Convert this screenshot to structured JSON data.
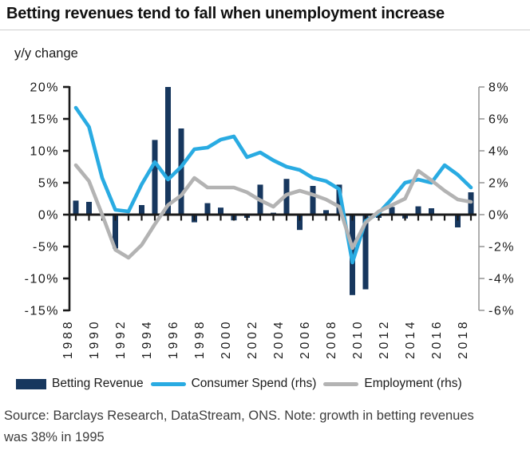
{
  "page": {
    "title": "Betting revenues tend to fall when unemployment increase",
    "subtitle": "y/y change",
    "source_note_line1": "Source: Barclays Research, DataStream, ONS. Note: growth in betting revenues",
    "source_note_line2": "was 38% in 1995"
  },
  "colors": {
    "betting_revenue": "#17375E",
    "consumer_spend": "#29ABE2",
    "employment": "#B3B3B3",
    "axis_black": "#1a1a1a",
    "right_axis_gray": "#999999"
  },
  "legend": [
    {
      "label": "Betting Revenue",
      "swatch": "bar",
      "color_key": "betting_revenue"
    },
    {
      "label": "Consumer Spend (rhs)",
      "swatch": "line",
      "color_key": "consumer_spend"
    },
    {
      "label": "Employment (rhs)",
      "swatch": "line",
      "color_key": "employment"
    }
  ],
  "chart_data": {
    "type": "combo",
    "x": [
      1988,
      1989,
      1990,
      1991,
      1992,
      1993,
      1994,
      1995,
      1996,
      1997,
      1998,
      1999,
      2000,
      2001,
      2002,
      2003,
      2004,
      2005,
      2006,
      2007,
      2008,
      2009,
      2010,
      2011,
      2012,
      2013,
      2014,
      2015,
      2016,
      2017,
      2018
    ],
    "x_tick_labels": [
      "1988",
      "1990",
      "1992",
      "1994",
      "1996",
      "1998",
      "2000",
      "2002",
      "2004",
      "2006",
      "2008",
      "2010",
      "2012",
      "2014",
      "2016",
      "2018"
    ],
    "left_axis": {
      "applies_to": "Betting Revenue",
      "unit": "%",
      "range": [
        -15,
        20
      ],
      "tick_values": [
        20,
        15,
        10,
        5,
        0,
        -5,
        -10,
        -15
      ],
      "tick_labels": [
        "20%",
        "15%",
        "10%",
        "5%",
        "0%",
        "-5%",
        "-10%",
        "-15%"
      ]
    },
    "right_axis": {
      "applies_to": "Consumer Spend, Employment",
      "unit": "%",
      "range": [
        -6,
        8
      ],
      "tick_values": [
        8,
        6,
        4,
        2,
        0,
        -2,
        -4,
        -6
      ],
      "tick_labels": [
        "8%",
        "6%",
        "4%",
        "2%",
        "0%",
        "-2%",
        "-4%",
        "-6%"
      ]
    },
    "series": [
      {
        "name": "Betting Revenue",
        "type": "bar",
        "axis": "left",
        "note": "1995 value is 38% but the bar is clipped at the 20% axis maximum",
        "values": [
          2.2,
          2.0,
          0,
          -5.3,
          0,
          1.5,
          11.7,
          38,
          13.5,
          -1.2,
          1.8,
          1.1,
          -0.9,
          -0.5,
          4.7,
          0.3,
          5.6,
          -2.4,
          4.5,
          0.7,
          4.7,
          -12.6,
          -11.7,
          -0.5,
          1.2,
          -0.6,
          1.3,
          1.0,
          0,
          -2.0,
          3.5
        ]
      },
      {
        "name": "Consumer Spend (rhs)",
        "type": "line",
        "axis": "right",
        "values": [
          6.7,
          5.5,
          2.3,
          0.3,
          0.2,
          1.9,
          3.3,
          2.2,
          3.0,
          4.1,
          4.2,
          4.7,
          4.9,
          3.6,
          3.9,
          3.4,
          3.0,
          2.8,
          2.3,
          2.1,
          1.6,
          -3.0,
          -0.4,
          0.1,
          1.0,
          2.0,
          2.2,
          2.0,
          3.1,
          2.5,
          1.7
        ]
      },
      {
        "name": "Employment (rhs)",
        "type": "line",
        "axis": "right",
        "values": [
          3.1,
          2.1,
          0.0,
          -2.2,
          -2.7,
          -1.9,
          -0.6,
          0.6,
          1.2,
          2.3,
          1.7,
          1.7,
          1.7,
          1.4,
          0.9,
          0.5,
          1.25,
          1.5,
          1.25,
          0.95,
          0.5,
          -2.1,
          -0.5,
          0.2,
          0.6,
          1.0,
          2.75,
          2.15,
          1.5,
          0.95,
          0.8
        ]
      }
    ],
    "grid": false,
    "legend_position": "bottom"
  }
}
